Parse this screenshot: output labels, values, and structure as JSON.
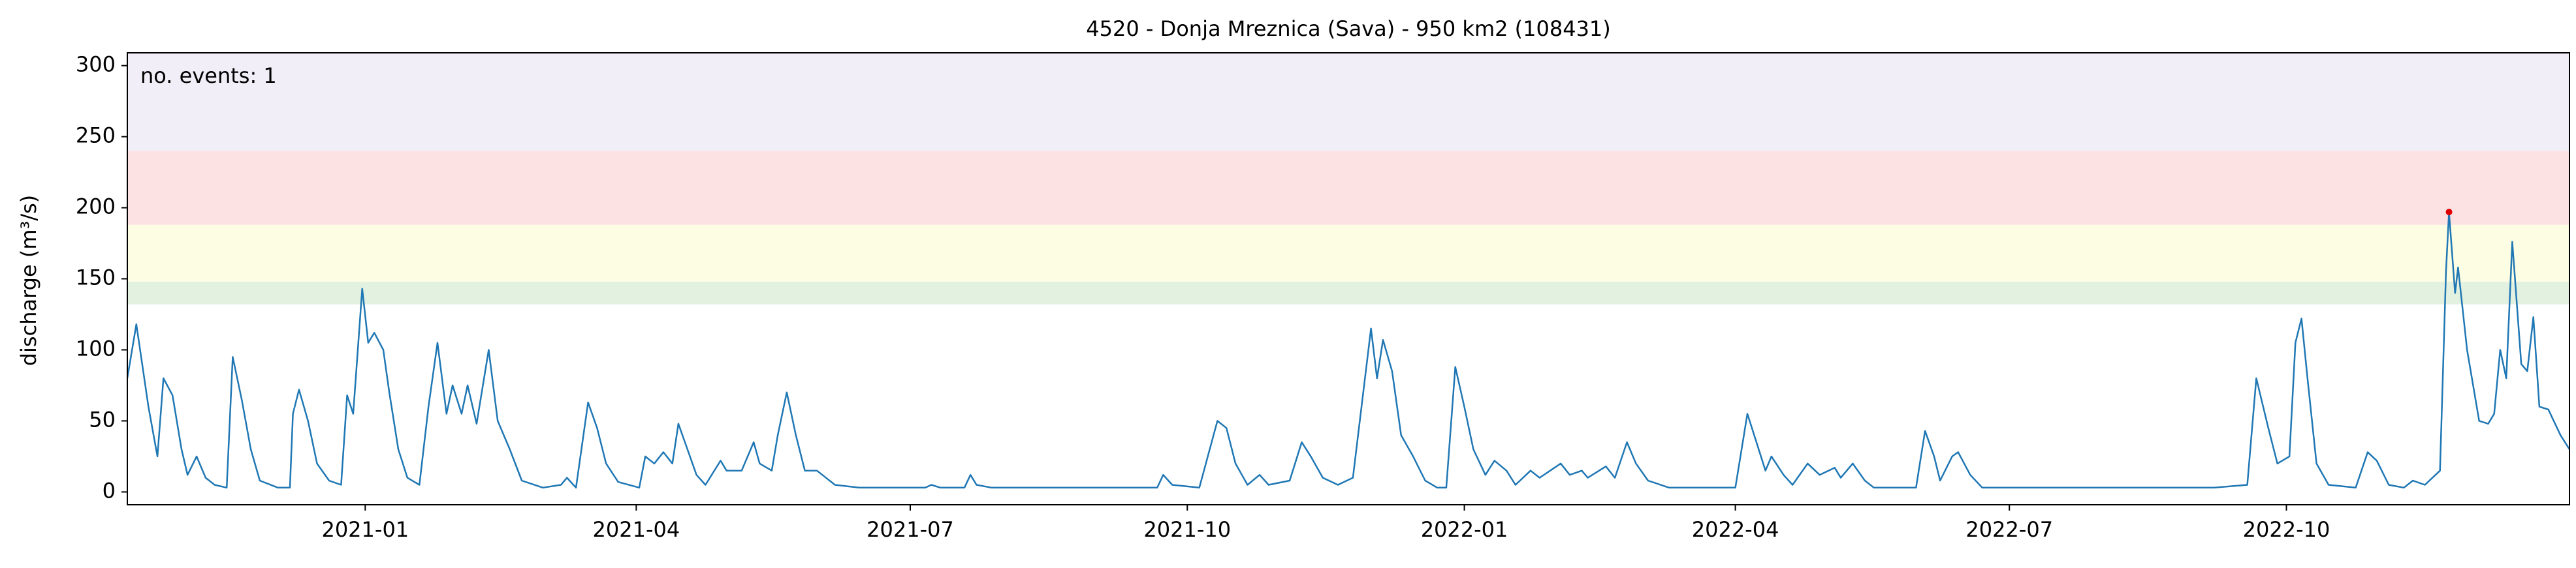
{
  "chart_data": {
    "type": "line",
    "title": "4520 - Donja Mreznica (Sava) - 950 km2 (108431)",
    "y_label": "discharge (m³/s)",
    "annotation": "no. events: 1",
    "annotation_color": "#e00000",
    "xlim": [
      "2020-10-14",
      "2023-01-03"
    ],
    "ylim": [
      -9,
      309
    ],
    "yticks": [
      0,
      50,
      100,
      150,
      200,
      250,
      300
    ],
    "xticks": [
      {
        "value": "2021-01-01",
        "label": "2021-01"
      },
      {
        "value": "2021-04-01",
        "label": "2021-04"
      },
      {
        "value": "2021-07-01",
        "label": "2021-07"
      },
      {
        "value": "2021-10-01",
        "label": "2021-10"
      },
      {
        "value": "2022-01-01",
        "label": "2022-01"
      },
      {
        "value": "2022-04-01",
        "label": "2022-04"
      },
      {
        "value": "2022-07-01",
        "label": "2022-07"
      },
      {
        "value": "2022-10-01",
        "label": "2022-10"
      }
    ],
    "bands": [
      {
        "from": 132,
        "to": 148,
        "color": "#e3f1e1"
      },
      {
        "from": 148,
        "to": 188,
        "color": "#fdfde3"
      },
      {
        "from": 188,
        "to": 240,
        "color": "#fde2e4"
      },
      {
        "from": 240,
        "to": 309,
        "color": "#f1eef8"
      }
    ],
    "x": [
      "2020-10-14",
      "2020-10-17",
      "2020-10-21",
      "2020-10-24",
      "2020-10-26",
      "2020-10-29",
      "2020-11-01",
      "2020-11-03",
      "2020-11-06",
      "2020-11-09",
      "2020-11-12",
      "2020-11-16",
      "2020-11-18",
      "2020-11-21",
      "2020-11-24",
      "2020-11-27",
      "2020-12-03",
      "2020-12-07",
      "2020-12-08",
      "2020-12-10",
      "2020-12-13",
      "2020-12-16",
      "2020-12-20",
      "2020-12-24",
      "2020-12-26",
      "2020-12-28",
      "2020-12-31",
      "2021-01-02",
      "2021-01-04",
      "2021-01-07",
      "2021-01-09",
      "2021-01-12",
      "2021-01-15",
      "2021-01-19",
      "2021-01-22",
      "2021-01-25",
      "2021-01-28",
      "2021-01-30",
      "2021-02-02",
      "2021-02-04",
      "2021-02-07",
      "2021-02-11",
      "2021-02-14",
      "2021-02-18",
      "2021-02-22",
      "2021-03-01",
      "2021-03-07",
      "2021-03-09",
      "2021-03-12",
      "2021-03-16",
      "2021-03-19",
      "2021-03-22",
      "2021-03-26",
      "2021-04-02",
      "2021-04-04",
      "2021-04-07",
      "2021-04-10",
      "2021-04-13",
      "2021-04-15",
      "2021-04-18",
      "2021-04-21",
      "2021-04-24",
      "2021-04-29",
      "2021-05-01",
      "2021-05-06",
      "2021-05-10",
      "2021-05-12",
      "2021-05-16",
      "2021-05-18",
      "2021-05-21",
      "2021-05-24",
      "2021-05-27",
      "2021-05-31",
      "2021-06-06",
      "2021-06-14",
      "2021-07-06",
      "2021-07-08",
      "2021-07-11",
      "2021-07-19",
      "2021-07-21",
      "2021-07-23",
      "2021-07-28",
      "2021-08-24",
      "2021-09-21",
      "2021-09-23",
      "2021-09-26",
      "2021-10-05",
      "2021-10-11",
      "2021-10-14",
      "2021-10-17",
      "2021-10-21",
      "2021-10-25",
      "2021-10-28",
      "2021-11-04",
      "2021-11-08",
      "2021-11-11",
      "2021-11-15",
      "2021-11-20",
      "2021-11-25",
      "2021-12-01",
      "2021-12-03",
      "2021-12-05",
      "2021-12-08",
      "2021-12-11",
      "2021-12-15",
      "2021-12-19",
      "2021-12-23",
      "2021-12-26",
      "2021-12-29",
      "2022-01-01",
      "2022-01-04",
      "2022-01-08",
      "2022-01-11",
      "2022-01-15",
      "2022-01-18",
      "2022-01-23",
      "2022-01-26",
      "2022-02-02",
      "2022-02-05",
      "2022-02-09",
      "2022-02-11",
      "2022-02-17",
      "2022-02-20",
      "2022-02-24",
      "2022-02-27",
      "2022-03-03",
      "2022-03-10",
      "2022-04-01",
      "2022-04-05",
      "2022-04-08",
      "2022-04-11",
      "2022-04-13",
      "2022-04-17",
      "2022-04-20",
      "2022-04-25",
      "2022-04-29",
      "2022-05-04",
      "2022-05-06",
      "2022-05-10",
      "2022-05-14",
      "2022-05-17",
      "2022-05-31",
      "2022-06-03",
      "2022-06-06",
      "2022-06-08",
      "2022-06-12",
      "2022-06-14",
      "2022-06-18",
      "2022-06-22",
      "2022-08-05",
      "2022-09-07",
      "2022-09-18",
      "2022-09-21",
      "2022-09-25",
      "2022-09-28",
      "2022-10-02",
      "2022-10-04",
      "2022-10-06",
      "2022-10-08",
      "2022-10-11",
      "2022-10-15",
      "2022-10-24",
      "2022-10-28",
      "2022-10-31",
      "2022-11-04",
      "2022-11-09",
      "2022-11-12",
      "2022-11-16",
      "2022-11-21",
      "2022-11-23",
      "2022-11-24",
      "2022-11-26",
      "2022-11-27",
      "2022-11-30",
      "2022-12-04",
      "2022-12-07",
      "2022-12-09",
      "2022-12-11",
      "2022-12-13",
      "2022-12-15",
      "2022-12-18",
      "2022-12-20",
      "2022-12-22",
      "2022-12-24",
      "2022-12-27",
      "2022-12-31",
      "2023-01-03"
    ],
    "series": [
      {
        "name": "discharge",
        "color": "#1f77b4",
        "values": [
          80,
          118,
          60,
          25,
          80,
          68,
          30,
          12,
          25,
          10,
          5,
          3,
          95,
          65,
          30,
          8,
          3,
          3,
          55,
          72,
          50,
          20,
          8,
          5,
          68,
          55,
          143,
          105,
          112,
          100,
          70,
          30,
          10,
          5,
          60,
          105,
          55,
          75,
          55,
          75,
          48,
          100,
          50,
          30,
          8,
          3,
          5,
          10,
          3,
          63,
          45,
          20,
          7,
          3,
          25,
          20,
          28,
          20,
          48,
          30,
          12,
          5,
          22,
          15,
          15,
          35,
          20,
          15,
          40,
          70,
          40,
          15,
          15,
          5,
          3,
          3,
          5,
          3,
          3,
          12,
          5,
          3,
          3,
          3,
          12,
          5,
          3,
          50,
          45,
          20,
          5,
          12,
          5,
          8,
          35,
          25,
          10,
          5,
          10,
          115,
          80,
          107,
          85,
          40,
          25,
          8,
          3,
          3,
          88,
          60,
          30,
          12,
          22,
          15,
          5,
          15,
          10,
          20,
          12,
          15,
          10,
          18,
          10,
          35,
          20,
          8,
          3,
          3,
          55,
          35,
          15,
          25,
          12,
          5,
          20,
          12,
          17,
          10,
          20,
          8,
          3,
          3,
          43,
          25,
          8,
          25,
          28,
          12,
          3,
          3,
          3,
          5,
          80,
          45,
          20,
          25,
          105,
          122,
          80,
          20,
          5,
          3,
          28,
          22,
          5,
          3,
          8,
          5,
          15,
          155,
          197,
          140,
          158,
          100,
          50,
          48,
          55,
          100,
          80,
          176,
          90,
          85,
          123,
          60,
          58,
          40,
          30
        ]
      }
    ],
    "events": {
      "x": [
        "2022-11-24"
      ],
      "values": [
        197
      ],
      "color": "#e00000"
    }
  }
}
